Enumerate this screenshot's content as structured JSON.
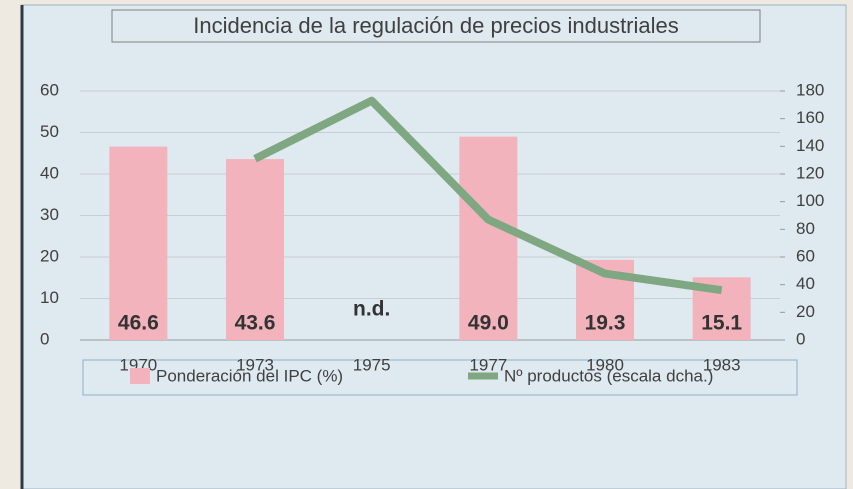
{
  "chart_data": {
    "type": "bar",
    "title": "Incidencia de la regulación de precios industriales",
    "categories": [
      "1970",
      "1973",
      "1975",
      "1977",
      "1980",
      "1983"
    ],
    "series": [
      {
        "name": "Ponderación del IPC (%)",
        "type": "bar",
        "color": "#f2b3bd",
        "values": [
          46.6,
          43.6,
          null,
          49.0,
          19.3,
          15.1
        ],
        "value_labels": [
          "46.6",
          "43.6",
          "n.d.",
          "49.0",
          "19.3",
          "15.1"
        ]
      },
      {
        "name": "Nº productos (escala dcha.)",
        "type": "line",
        "axis": "y2",
        "color": "#7fa882",
        "values": [
          null,
          131,
          173,
          87,
          48,
          36
        ]
      }
    ],
    "ylim": [
      0,
      60
    ],
    "yticks": [
      0,
      10,
      20,
      30,
      40,
      50,
      60
    ],
    "y2lim": [
      0,
      180
    ],
    "y2ticks": [
      0,
      20,
      40,
      60,
      80,
      100,
      120,
      140,
      160,
      180
    ],
    "grid": true,
    "legend": "bottom"
  }
}
